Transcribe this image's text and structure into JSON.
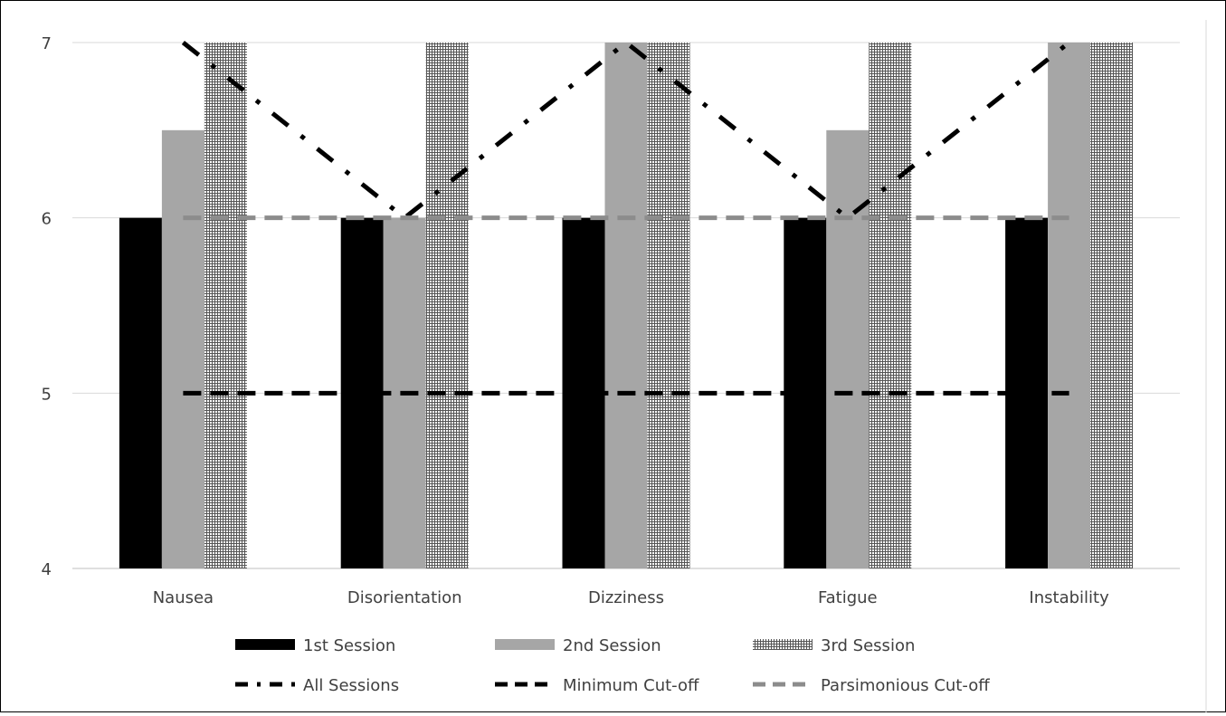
{
  "chart_data": {
    "type": "bar",
    "title": "",
    "xlabel": "",
    "ylabel": "",
    "ylim": [
      4,
      7
    ],
    "yticks": [
      4,
      5,
      6,
      7
    ],
    "grid": true,
    "legend_position": "bottom",
    "categories": [
      "Nausea",
      "Disorientation",
      "Dizziness",
      "Fatigue",
      "Instability"
    ],
    "series": [
      {
        "name": "1st Session",
        "kind": "bar",
        "pattern": "solid",
        "color": "#000000",
        "values": [
          6,
          6,
          6,
          6,
          6
        ]
      },
      {
        "name": "2nd Session",
        "kind": "bar",
        "pattern": "solid",
        "color": "#a6a6a6",
        "values": [
          6.5,
          6,
          7,
          6.5,
          7
        ]
      },
      {
        "name": "3rd Session",
        "kind": "bar",
        "pattern": "grid-hatch",
        "color": "#7f7f7f",
        "values": [
          7,
          7,
          7,
          7,
          7
        ]
      },
      {
        "name": "All Sessions",
        "kind": "line",
        "dash": "dash-dot",
        "color": "#000000",
        "values": [
          7,
          6,
          7,
          6,
          7
        ]
      },
      {
        "name": "Minimum Cut-off",
        "kind": "line",
        "dash": "dash",
        "color": "#000000",
        "values": [
          5,
          5,
          5,
          5,
          5
        ]
      },
      {
        "name": "Parsimonious Cut-off",
        "kind": "line",
        "dash": "dash",
        "color": "#8c8c8c",
        "values": [
          6,
          6,
          6,
          6,
          6
        ]
      }
    ]
  }
}
